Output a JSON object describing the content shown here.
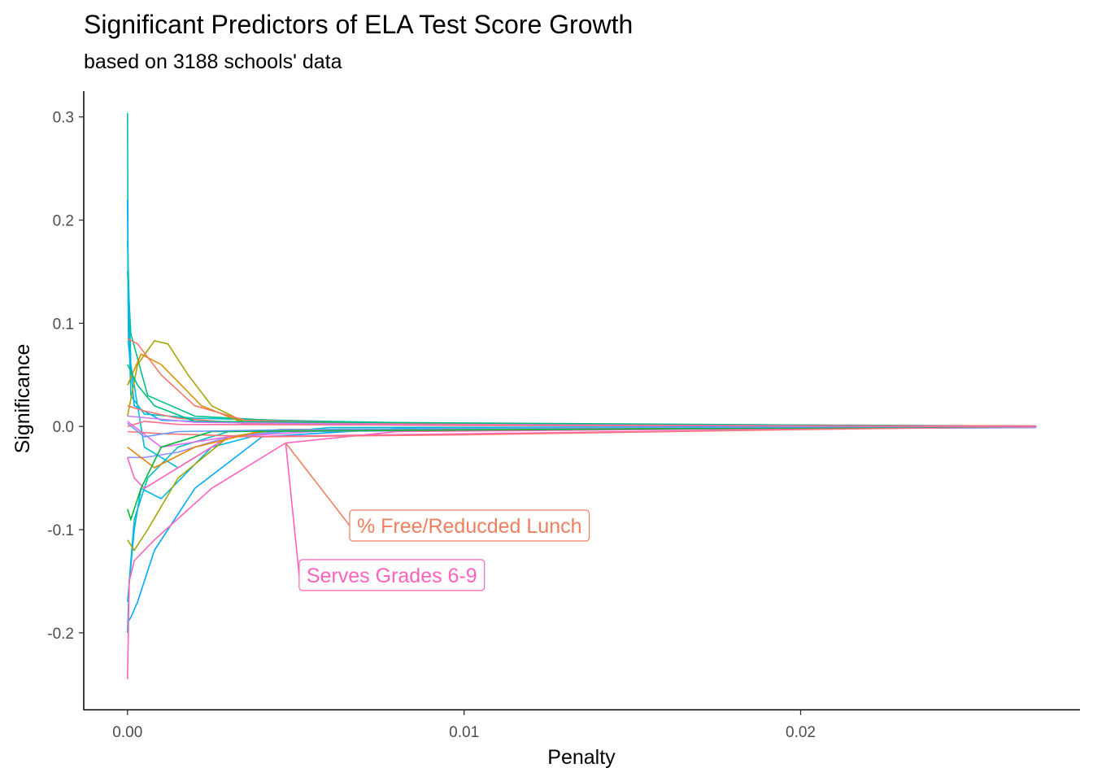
{
  "chart_data": {
    "type": "line",
    "title": "Significant Predictors of ELA Test Score Growth",
    "subtitle": "based on 3188 schools' data",
    "xlabel": "Penalty",
    "ylabel": "Significance",
    "xlim": [
      -0.0013,
      0.0283
    ],
    "ylim": [
      -0.275,
      0.325
    ],
    "xticks": [
      {
        "value": 0,
        "label": "0.00"
      },
      {
        "value": 0.01,
        "label": "0.01"
      },
      {
        "value": 0.02,
        "label": "0.02"
      }
    ],
    "yticks": [
      {
        "value": 0.3,
        "label": "0.3"
      },
      {
        "value": 0.2,
        "label": "0.2"
      },
      {
        "value": 0.1,
        "label": "0.1"
      },
      {
        "value": 0.0,
        "label": "0.0"
      },
      {
        "value": -0.1,
        "label": "-0.1"
      },
      {
        "value": -0.2,
        "label": "-0.2"
      }
    ],
    "grid": false,
    "legend": "none",
    "series": [
      {
        "color": "#00BFC4",
        "points": [
          [
            0,
            0.304
          ],
          [
            2e-05,
            0.12
          ],
          [
            0.0001,
            0.03
          ],
          [
            0.0005,
            0.012
          ],
          [
            0.002,
            0.008
          ],
          [
            0.006,
            0.005
          ],
          [
            0.0125,
            0.001
          ],
          [
            0.027,
            0
          ]
        ]
      },
      {
        "color": "#00B0F6",
        "points": [
          [
            0,
            0.22
          ],
          [
            3e-05,
            0.08
          ],
          [
            0.0002,
            0.02
          ],
          [
            0.001,
            0.006
          ],
          [
            0.004,
            0.003
          ],
          [
            0.012,
            0.001
          ],
          [
            0.027,
            0
          ]
        ]
      },
      {
        "color": "#00C08B",
        "points": [
          [
            0,
            0.15
          ],
          [
            0.0001,
            0.09
          ],
          [
            0.0006,
            0.03
          ],
          [
            0.002,
            0.01
          ],
          [
            0.006,
            0.003
          ],
          [
            0.027,
            0
          ]
        ]
      },
      {
        "color": "#00A9FF",
        "points": [
          [
            0,
            -0.19
          ],
          [
            0.0001,
            -0.185
          ],
          [
            0.0003,
            -0.17
          ],
          [
            0.0008,
            -0.12
          ],
          [
            0.002,
            -0.06
          ],
          [
            0.004,
            -0.01
          ],
          [
            0.008,
            -0.002
          ],
          [
            0.027,
            0
          ]
        ]
      },
      {
        "color": "#00BFC4",
        "points": [
          [
            0,
            -0.2
          ],
          [
            5e-05,
            -0.15
          ],
          [
            0.0002,
            -0.09
          ],
          [
            0.0006,
            -0.05
          ],
          [
            0.0015,
            -0.02
          ],
          [
            0.003,
            -0.005
          ],
          [
            0.027,
            0
          ]
        ]
      },
      {
        "color": "#00BCD8",
        "points": [
          [
            0,
            0.18
          ],
          [
            0.0001,
            0.06
          ],
          [
            0.0005,
            -0.02
          ],
          [
            0.0015,
            -0.04
          ],
          [
            0.003,
            -0.01
          ],
          [
            0.006,
            -0.001
          ],
          [
            0.027,
            0
          ]
        ]
      },
      {
        "color": "#00B4F0",
        "points": [
          [
            0,
            -0.17
          ],
          [
            0.0002,
            -0.1
          ],
          [
            0.0004,
            -0.06
          ],
          [
            0.001,
            -0.07
          ],
          [
            0.0025,
            -0.02
          ],
          [
            0.0045,
            -0.003
          ],
          [
            0.027,
            0
          ]
        ]
      },
      {
        "color": "#A3A500",
        "points": [
          [
            0,
            -0.11
          ],
          [
            0.0002,
            -0.12
          ],
          [
            0.0006,
            -0.1
          ],
          [
            0.0015,
            -0.05
          ],
          [
            0.003,
            -0.01
          ],
          [
            0.0045,
            -0.003
          ],
          [
            0.027,
            0
          ]
        ]
      },
      {
        "color": "#A3A500",
        "points": [
          [
            0,
            0.01
          ],
          [
            0.0003,
            0.06
          ],
          [
            0.0008,
            0.083
          ],
          [
            0.0012,
            0.08
          ],
          [
            0.0018,
            0.05
          ],
          [
            0.0025,
            0.02
          ],
          [
            0.0035,
            0.004
          ],
          [
            0.027,
            0
          ]
        ]
      },
      {
        "color": "#D89000",
        "points": [
          [
            0,
            0.04
          ],
          [
            0.0004,
            0.07
          ],
          [
            0.001,
            0.06
          ],
          [
            0.0022,
            0.02
          ],
          [
            0.0035,
            0.003
          ],
          [
            0.027,
            0
          ]
        ]
      },
      {
        "color": "#E76BF3",
        "points": [
          [
            0,
            0.005
          ],
          [
            0.001,
            -0.02
          ],
          [
            0.003,
            -0.01
          ],
          [
            0.006,
            -0.004
          ],
          [
            0.027,
            -0.001
          ]
        ]
      },
      {
        "color": "#9590FF",
        "points": [
          [
            0,
            -0.03
          ],
          [
            0.0005,
            -0.03
          ],
          [
            0.0015,
            -0.025
          ],
          [
            0.003,
            -0.01
          ],
          [
            0.0045,
            -0.005
          ],
          [
            0.027,
            -0.001
          ]
        ]
      },
      {
        "color": "#FF62BC",
        "points": [
          [
            0,
            -0.245
          ],
          [
            5e-05,
            -0.15
          ],
          [
            0.0002,
            -0.13
          ],
          [
            0.0008,
            -0.11
          ],
          [
            0.0025,
            -0.06
          ],
          [
            0.0047,
            -0.016
          ],
          [
            0.008,
            -0.005
          ],
          [
            0.027,
            0
          ]
        ]
      },
      {
        "color": "#FF62BC",
        "points": [
          [
            0,
            -0.03
          ],
          [
            0.0002,
            -0.05
          ],
          [
            0.0005,
            -0.06
          ],
          [
            0.0015,
            -0.04
          ],
          [
            0.003,
            -0.01
          ],
          [
            0.027,
            0
          ]
        ]
      },
      {
        "color": "#F8766D",
        "points": [
          [
            0,
            0.085
          ],
          [
            0.0003,
            0.08
          ],
          [
            0.001,
            0.05
          ],
          [
            0.002,
            0.02
          ],
          [
            0.0035,
            0.006
          ],
          [
            0.008,
            0.003
          ],
          [
            0.027,
            0.0005
          ]
        ]
      },
      {
        "color": "#F8766D",
        "points": [
          [
            0,
            0.02
          ],
          [
            0.0005,
            0.015
          ],
          [
            0.0015,
            0.008
          ],
          [
            0.0035,
            0.003
          ],
          [
            0.0047,
            0.002
          ],
          [
            0.01,
            0.001
          ],
          [
            0.027,
            0.0005
          ]
        ]
      },
      {
        "color": "#FA7476",
        "points": [
          [
            0,
            -0.005
          ],
          [
            0.001,
            -0.007
          ],
          [
            0.004,
            -0.01
          ],
          [
            0.01,
            -0.008
          ],
          [
            0.02,
            -0.003
          ],
          [
            0.027,
            0
          ]
        ]
      },
      {
        "color": "#E58700",
        "points": [
          [
            0,
            -0.02
          ],
          [
            0.0008,
            -0.04
          ],
          [
            0.002,
            -0.02
          ],
          [
            0.004,
            -0.004
          ],
          [
            0.027,
            0
          ]
        ]
      },
      {
        "color": "#00BA38",
        "points": [
          [
            0,
            -0.08
          ],
          [
            0.0001,
            -0.09
          ],
          [
            0.0004,
            -0.06
          ],
          [
            0.001,
            -0.02
          ],
          [
            0.0025,
            -0.005
          ],
          [
            0.027,
            0
          ]
        ]
      },
      {
        "color": "#00BF7D",
        "points": [
          [
            0,
            0.06
          ],
          [
            0.0003,
            0.04
          ],
          [
            0.0008,
            0.02
          ],
          [
            0.002,
            0.005
          ],
          [
            0.027,
            0
          ]
        ]
      },
      {
        "color": "#619CFF",
        "points": [
          [
            0,
            0.003
          ],
          [
            0.0005,
            -0.01
          ],
          [
            0.0015,
            -0.005
          ],
          [
            0.005,
            -0.003
          ],
          [
            0.015,
            -0.001
          ],
          [
            0.027,
            0
          ]
        ]
      },
      {
        "color": "#C77CFF",
        "points": [
          [
            0,
            0.01
          ],
          [
            0.002,
            0.004
          ],
          [
            0.008,
            0.002
          ],
          [
            0.027,
            0
          ]
        ]
      },
      {
        "color": "#FF6C91",
        "points": [
          [
            0,
            0.0
          ],
          [
            0.0005,
            0.005
          ],
          [
            0.0015,
            0.002
          ],
          [
            0.027,
            0
          ]
        ]
      }
    ],
    "annotations": [
      {
        "text": "% Free/Reducded Lunch",
        "color": "#F07F60",
        "point": [
          0.0047,
          -0.016
        ],
        "at": [
          0.0066,
          -0.096
        ]
      },
      {
        "text": "Serves Grades 6-9",
        "color": "#FF62BC",
        "point": [
          0.0047,
          -0.016
        ],
        "at": [
          0.0051,
          -0.144
        ]
      }
    ]
  }
}
